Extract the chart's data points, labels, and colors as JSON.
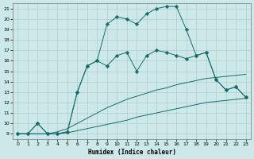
{
  "xlabel": "Humidex (Indice chaleur)",
  "background_color": "#cde8e8",
  "line_color": "#1a6b6b",
  "grid_color": "#aecece",
  "xlim": [
    -0.5,
    23.5
  ],
  "ylim": [
    8.5,
    21.5
  ],
  "xticks": [
    0,
    1,
    2,
    3,
    4,
    5,
    6,
    7,
    8,
    9,
    10,
    11,
    12,
    13,
    14,
    15,
    16,
    17,
    18,
    19,
    20,
    21,
    22,
    23
  ],
  "yticks": [
    9,
    10,
    11,
    12,
    13,
    14,
    15,
    16,
    17,
    18,
    19,
    20,
    21
  ],
  "line1": {
    "x": [
      0,
      1,
      2,
      3,
      4,
      5,
      6,
      7,
      8,
      9,
      10,
      11,
      12,
      13,
      14,
      15,
      16,
      17,
      18,
      19,
      20,
      21,
      22,
      23
    ],
    "y": [
      9,
      9,
      9,
      9,
      9,
      9.1,
      9.3,
      9.5,
      9.7,
      9.9,
      10.1,
      10.3,
      10.6,
      10.8,
      11.0,
      11.2,
      11.4,
      11.6,
      11.8,
      12.0,
      12.1,
      12.2,
      12.3,
      12.4
    ]
  },
  "line2": {
    "x": [
      0,
      1,
      2,
      3,
      4,
      5,
      6,
      7,
      8,
      9,
      10,
      11,
      12,
      13,
      14,
      15,
      16,
      17,
      18,
      19,
      20,
      21,
      22,
      23
    ],
    "y": [
      9,
      9,
      9,
      9,
      9.2,
      9.5,
      10.0,
      10.5,
      11.0,
      11.5,
      11.9,
      12.3,
      12.6,
      12.9,
      13.2,
      13.4,
      13.7,
      13.9,
      14.1,
      14.3,
      14.4,
      14.5,
      14.6,
      14.7
    ]
  },
  "line3": {
    "x": [
      0,
      1,
      2,
      3,
      4,
      5,
      6,
      7,
      8,
      9,
      10,
      11,
      12,
      13,
      14,
      15,
      16,
      17,
      18,
      19,
      20,
      21,
      22,
      23
    ],
    "y": [
      9,
      9,
      10,
      9,
      9,
      9.2,
      13,
      15.5,
      16,
      15.5,
      16.5,
      16.8,
      15,
      16.5,
      17,
      16.8,
      16.5,
      16.2,
      16.5,
      16.8,
      14.2,
      13.2,
      13.5,
      12.5
    ]
  },
  "line4": {
    "x": [
      0,
      1,
      2,
      3,
      4,
      5,
      6,
      7,
      8,
      9,
      10,
      11,
      12,
      13,
      14,
      15,
      16,
      17,
      18,
      19,
      20,
      21,
      22,
      23
    ],
    "y": [
      9,
      9,
      10,
      9,
      9,
      9.2,
      13,
      15.5,
      16,
      19.5,
      20.2,
      20.0,
      19.5,
      20.5,
      21.0,
      21.2,
      21.2,
      19.0,
      16.5,
      16.8,
      14.2,
      13.2,
      13.5,
      12.5
    ]
  }
}
